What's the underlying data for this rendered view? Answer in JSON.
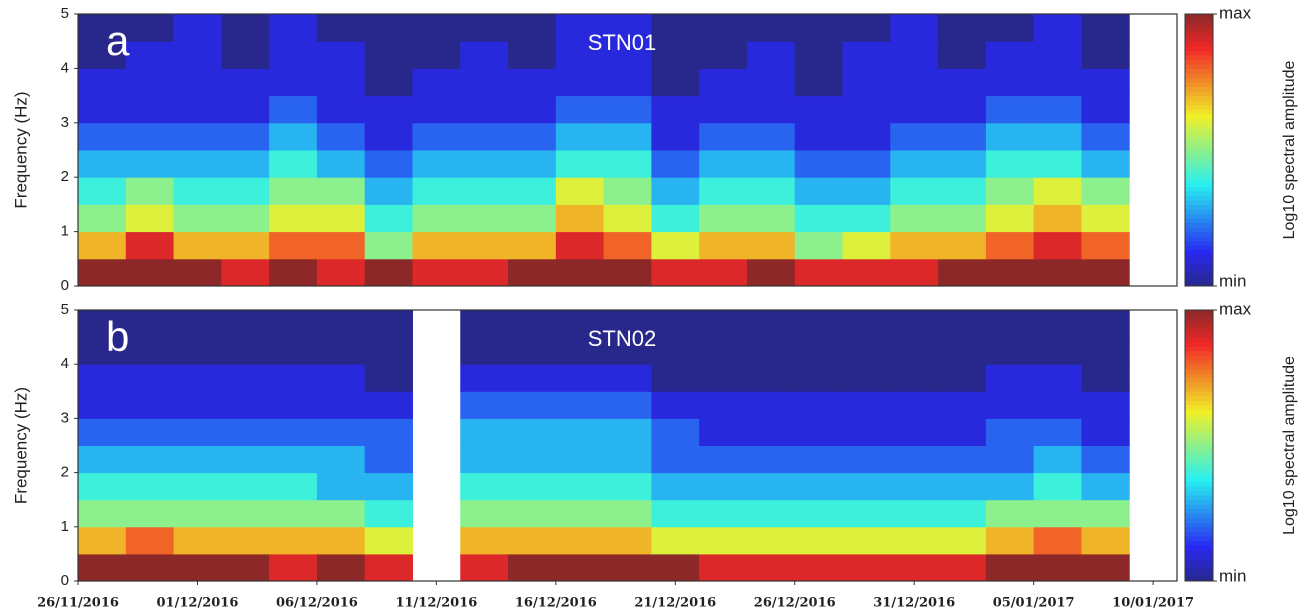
{
  "chart_data": [
    {
      "type": "heatmap",
      "panel": "a",
      "station": "STN01",
      "ylabel": "Frequency (Hz)",
      "xlim": [
        "2016-11-26",
        "2017-01-11"
      ],
      "ylim": [
        0,
        5
      ],
      "yticks": [
        0,
        1,
        2,
        3,
        4,
        5
      ],
      "x": [
        "2016-11-26",
        "2016-11-28",
        "2016-11-30",
        "2016-12-02",
        "2016-12-04",
        "2016-12-06",
        "2016-12-08",
        "2016-12-10",
        "2016-12-12",
        "2016-12-14",
        "2016-12-16",
        "2016-12-18",
        "2016-12-20",
        "2016-12-22",
        "2016-12-24",
        "2016-12-26",
        "2016-12-28",
        "2016-12-30",
        "2017-01-01",
        "2017-01-03",
        "2017-01-05",
        "2017-01-07",
        "2017-01-09"
      ],
      "y": [
        0,
        0.5,
        1,
        1.5,
        2,
        2.5,
        3,
        3.5,
        4,
        4.5
      ],
      "z": [
        [
          10,
          10,
          10,
          9,
          10,
          9,
          10,
          9,
          9,
          10,
          10,
          10,
          9,
          9,
          10,
          9,
          9,
          9,
          10,
          10,
          10,
          10,
          null
        ],
        [
          7,
          9,
          7,
          7,
          8,
          8,
          5,
          7,
          7,
          7,
          9,
          8,
          6,
          7,
          7,
          5,
          6,
          7,
          7,
          8,
          9,
          8,
          null
        ],
        [
          5,
          6,
          5,
          5,
          6,
          6,
          4,
          5,
          5,
          5,
          7,
          6,
          4,
          5,
          5,
          4,
          4,
          5,
          5,
          6,
          7,
          6,
          null
        ],
        [
          4,
          5,
          4,
          4,
          5,
          5,
          3,
          4,
          4,
          4,
          6,
          5,
          3,
          4,
          4,
          3,
          3,
          4,
          4,
          5,
          6,
          5,
          null
        ],
        [
          3,
          3,
          3,
          3,
          4,
          3,
          2,
          3,
          3,
          3,
          4,
          4,
          2,
          3,
          3,
          2,
          2,
          3,
          3,
          4,
          4,
          3,
          null
        ],
        [
          2,
          2,
          2,
          2,
          3,
          2,
          1,
          2,
          2,
          2,
          3,
          3,
          1,
          2,
          2,
          1,
          1,
          2,
          2,
          3,
          3,
          2,
          null
        ],
        [
          1,
          1,
          1,
          1,
          2,
          1,
          1,
          1,
          1,
          1,
          2,
          2,
          1,
          1,
          1,
          1,
          1,
          1,
          1,
          2,
          2,
          1,
          null
        ],
        [
          1,
          1,
          1,
          1,
          1,
          1,
          0,
          1,
          1,
          1,
          1,
          1,
          0,
          1,
          1,
          0,
          1,
          1,
          1,
          1,
          1,
          1,
          null
        ],
        [
          0,
          1,
          1,
          0,
          1,
          1,
          0,
          0,
          1,
          0,
          1,
          1,
          0,
          0,
          1,
          0,
          1,
          1,
          0,
          1,
          1,
          0,
          null
        ],
        [
          0,
          0,
          1,
          0,
          1,
          0,
          0,
          0,
          0,
          0,
          1,
          1,
          0,
          0,
          0,
          0,
          0,
          1,
          0,
          0,
          1,
          0,
          null
        ]
      ],
      "colorbar": {
        "label": "Log10 spectral amplitude",
        "zlim": [
          0,
          10
        ],
        "ticks": [
          {
            "value": 0,
            "label": "min"
          },
          {
            "value": 10,
            "label": "max"
          }
        ]
      }
    },
    {
      "type": "heatmap",
      "panel": "b",
      "station": "STN02",
      "ylabel": "Frequency (Hz)",
      "xlim": [
        "2016-11-26",
        "2017-01-11"
      ],
      "ylim": [
        0,
        5
      ],
      "yticks": [
        0,
        1,
        2,
        3,
        4,
        5
      ],
      "xticks": [
        {
          "value": "2016-11-26",
          "label": "26/11/2016"
        },
        {
          "value": "2016-12-01",
          "label": "01/12/2016"
        },
        {
          "value": "2016-12-06",
          "label": "06/12/2016"
        },
        {
          "value": "2016-12-11",
          "label": "11/12/2016"
        },
        {
          "value": "2016-12-16",
          "label": "16/12/2016"
        },
        {
          "value": "2016-12-21",
          "label": "21/12/2016"
        },
        {
          "value": "2016-12-26",
          "label": "26/12/2016"
        },
        {
          "value": "2016-12-31",
          "label": "31/12/2016"
        },
        {
          "value": "2017-01-05",
          "label": "05/01/2017"
        },
        {
          "value": "2017-01-10",
          "label": "10/01/2017"
        }
      ],
      "x": [
        "2016-11-26",
        "2016-11-28",
        "2016-11-30",
        "2016-12-02",
        "2016-12-04",
        "2016-12-06",
        "2016-12-08",
        "2016-12-10",
        "2016-12-12",
        "2016-12-14",
        "2016-12-16",
        "2016-12-18",
        "2016-12-20",
        "2016-12-22",
        "2016-12-24",
        "2016-12-26",
        "2016-12-28",
        "2016-12-30",
        "2017-01-01",
        "2017-01-03",
        "2017-01-05",
        "2017-01-07",
        "2017-01-09"
      ],
      "y": [
        0,
        0.5,
        1,
        1.5,
        2,
        2.5,
        3,
        3.5,
        4,
        4.5
      ],
      "z": [
        [
          10,
          10,
          10,
          10,
          9,
          10,
          9,
          null,
          9,
          10,
          10,
          10,
          10,
          9,
          9,
          9,
          9,
          9,
          9,
          10,
          10,
          10,
          null
        ],
        [
          7,
          8,
          7,
          7,
          7,
          7,
          6,
          null,
          7,
          7,
          7,
          7,
          6,
          6,
          6,
          6,
          6,
          6,
          6,
          7,
          8,
          7,
          null
        ],
        [
          5,
          5,
          5,
          5,
          5,
          5,
          4,
          null,
          5,
          5,
          5,
          5,
          4,
          4,
          4,
          4,
          4,
          4,
          4,
          5,
          5,
          5,
          null
        ],
        [
          4,
          4,
          4,
          4,
          4,
          3,
          3,
          null,
          4,
          4,
          4,
          4,
          3,
          3,
          3,
          3,
          3,
          3,
          3,
          3,
          4,
          3,
          null
        ],
        [
          3,
          3,
          3,
          3,
          3,
          3,
          2,
          null,
          3,
          3,
          3,
          3,
          2,
          2,
          2,
          2,
          2,
          2,
          2,
          2,
          3,
          2,
          null
        ],
        [
          2,
          2,
          2,
          2,
          2,
          2,
          2,
          null,
          3,
          3,
          3,
          3,
          2,
          1,
          1,
          1,
          1,
          1,
          1,
          2,
          2,
          1,
          null
        ],
        [
          1,
          1,
          1,
          1,
          1,
          1,
          1,
          null,
          2,
          2,
          2,
          2,
          1,
          1,
          1,
          1,
          1,
          1,
          1,
          1,
          1,
          1,
          null
        ],
        [
          1,
          1,
          1,
          1,
          1,
          1,
          0,
          null,
          1,
          1,
          1,
          1,
          0,
          0,
          0,
          0,
          0,
          0,
          0,
          1,
          1,
          0,
          null
        ],
        [
          0,
          0,
          0,
          0,
          0,
          0,
          0,
          null,
          0,
          0,
          0,
          0,
          0,
          0,
          0,
          0,
          0,
          0,
          0,
          0,
          0,
          0,
          null
        ],
        [
          0,
          0,
          0,
          0,
          0,
          0,
          0,
          null,
          0,
          0,
          0,
          0,
          0,
          0,
          0,
          0,
          0,
          0,
          0,
          0,
          0,
          0,
          null
        ]
      ],
      "colorbar": {
        "label": "Log10 spectral amplitude",
        "zlim": [
          0,
          10
        ],
        "ticks": [
          {
            "value": 0,
            "label": "min"
          },
          {
            "value": 10,
            "label": "max"
          }
        ]
      }
    }
  ]
}
